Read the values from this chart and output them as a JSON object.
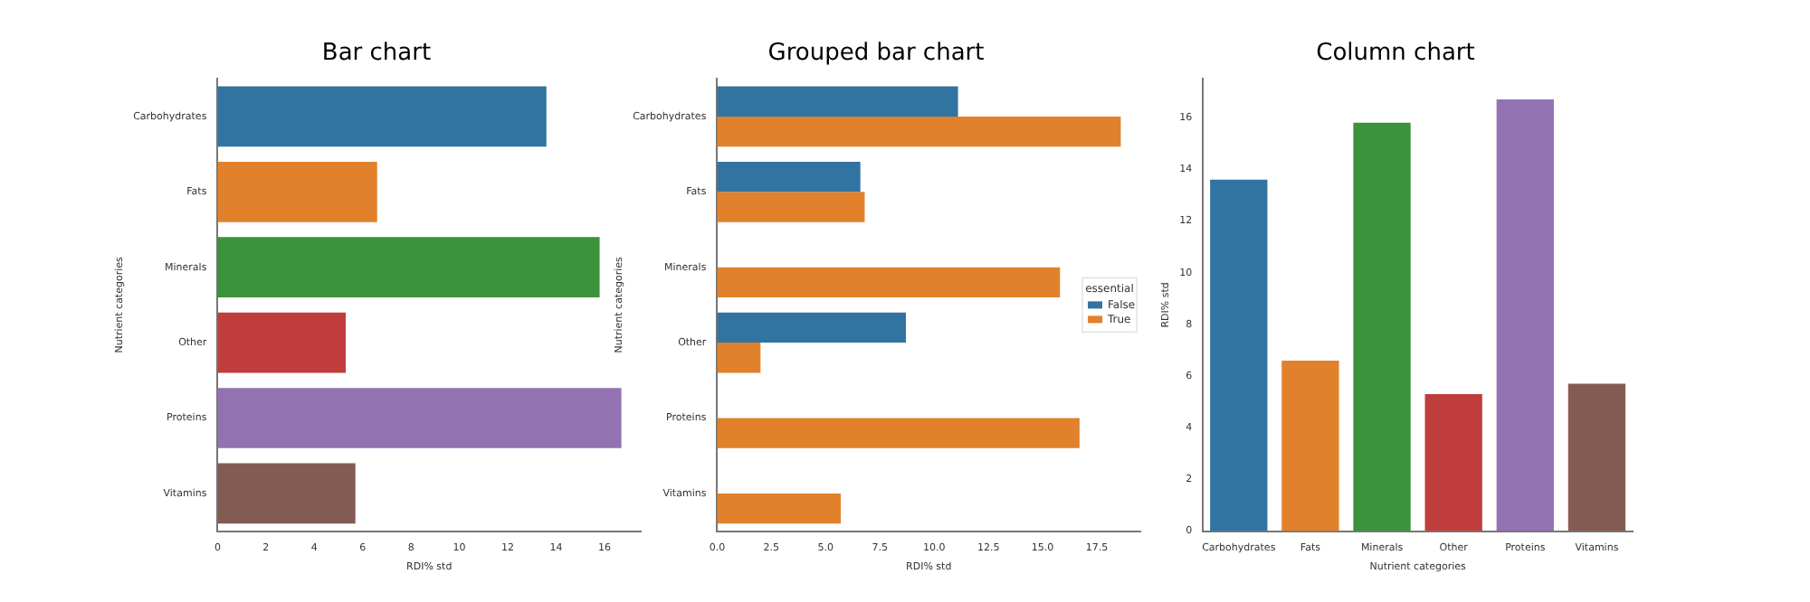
{
  "chart_data": [
    {
      "type": "bar",
      "title": "Bar chart",
      "orientation": "horizontal",
      "xlabel": "RDI% std",
      "ylabel": "Nutrient categories",
      "categories": [
        "Carbohydrates",
        "Fats",
        "Minerals",
        "Other",
        "Proteins",
        "Vitamins"
      ],
      "values": [
        13.6,
        6.6,
        15.8,
        5.3,
        16.7,
        5.7
      ],
      "colors": [
        "#3274a1",
        "#e1812c",
        "#3a923a",
        "#c03d3e",
        "#9372b2",
        "#845b53"
      ],
      "xlim": [
        0,
        17.5
      ],
      "xticks": [
        0,
        2,
        4,
        6,
        8,
        10,
        12,
        14,
        16
      ],
      "grid": false,
      "legend": false
    },
    {
      "type": "bar",
      "title": "Grouped bar chart",
      "orientation": "horizontal",
      "xlabel": "RDI% std",
      "ylabel": "Nutrient categories",
      "legend_title": "essential",
      "categories": [
        "Carbohydrates",
        "Fats",
        "Minerals",
        "Other",
        "Proteins",
        "Vitamins"
      ],
      "series": [
        {
          "name": "False",
          "color": "#3274a1",
          "values": [
            11.1,
            6.6,
            null,
            8.7,
            null,
            null
          ]
        },
        {
          "name": "True",
          "color": "#e1812c",
          "values": [
            18.6,
            6.8,
            15.8,
            2.0,
            16.7,
            5.7
          ]
        }
      ],
      "xlim": [
        0,
        19.5
      ],
      "xticks": [
        {
          "value": 0,
          "label": "0.0"
        },
        {
          "value": 2.5,
          "label": "2.5"
        },
        {
          "value": 5,
          "label": "5.0"
        },
        {
          "value": 7.5,
          "label": "7.5"
        },
        {
          "value": 10,
          "label": "10.0"
        },
        {
          "value": 12.5,
          "label": "12.5"
        },
        {
          "value": 15,
          "label": "15.0"
        },
        {
          "value": 17.5,
          "label": "17.5"
        }
      ],
      "grid": false,
      "legend": "right"
    },
    {
      "type": "bar",
      "title": "Column chart",
      "xlabel": "Nutrient categories",
      "ylabel": "RDI% std",
      "categories": [
        "Carbohydrates",
        "Fats",
        "Minerals",
        "Other",
        "Proteins",
        "Vitamins"
      ],
      "values": [
        13.6,
        6.6,
        15.8,
        5.3,
        16.7,
        5.7
      ],
      "colors": [
        "#3274a1",
        "#e1812c",
        "#3a923a",
        "#c03d3e",
        "#9372b2",
        "#845b53"
      ],
      "ylim": [
        0,
        17.5
      ],
      "yticks": [
        0,
        2,
        4,
        6,
        8,
        10,
        12,
        14,
        16
      ],
      "grid": false,
      "legend": false
    }
  ]
}
